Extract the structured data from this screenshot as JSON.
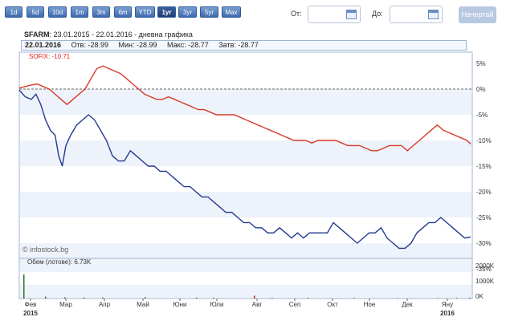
{
  "toolbar": {
    "periods": [
      "1d",
      "5d",
      "10d",
      "1m",
      "3m",
      "6m",
      "YTD",
      "1yr",
      "3yr",
      "5yr",
      "Max"
    ],
    "period_labels": [
      "1d",
      "5d",
      "10d",
      "1m",
      "3m",
      "6m",
      "YTD",
      "1yr",
      "3yr",
      "5yr",
      "Max"
    ],
    "active_period": "1yr",
    "from_label": "От:",
    "to_label": "До:",
    "draw_label": "Начертай"
  },
  "header": {
    "symbol": "SFARM",
    "subtitle": ": 23.01.2015 - 22.01.2016 - дневна графика"
  },
  "quote": {
    "date": "22.01.2016",
    "open": "Отв: -28.99",
    "min": "Мин: -28.99",
    "max": "Макс: -28.77",
    "close": "Затв: -28.77"
  },
  "chart_labels": {
    "sofix": "SOFIX: -10.71",
    "copyright": "© infostock.bg",
    "volume": "Обем (лотове): 6.73K",
    "y_ticks": [
      "5%",
      "0%",
      "-5%",
      "-10%",
      "-15%",
      "-20%",
      "-25%",
      "-30%",
      "-35%"
    ],
    "vol_ticks": [
      "2000K",
      "1000K",
      "0K"
    ],
    "x_months": [
      "Фев",
      "Мар",
      "Апр",
      "Май",
      "Юни",
      "Юли",
      "Авг",
      "Сеп",
      "Окт",
      "Ное",
      "Дек",
      "Яну"
    ],
    "x_years": [
      "2015",
      "2016"
    ]
  },
  "colors": {
    "sfarm_line": "#23398f",
    "sofix_line": "#d83a28",
    "band": "#eef2fa"
  },
  "chart_data": {
    "type": "line",
    "x_start": "23.01.2015",
    "x_end": "22.01.2016",
    "ylim": [
      -35,
      5
    ],
    "y_unit": "%",
    "series": [
      {
        "name": "SFARM",
        "points": [
          [
            0,
            -0.2
          ],
          [
            0.5,
            -1.5
          ],
          [
            1,
            -2
          ],
          [
            1.4,
            -1
          ],
          [
            1.8,
            -3
          ],
          [
            2.2,
            -6
          ],
          [
            2.6,
            -8
          ],
          [
            3,
            -9
          ],
          [
            3.3,
            -13
          ],
          [
            3.6,
            -15
          ],
          [
            3.9,
            -11
          ],
          [
            4.3,
            -9
          ],
          [
            4.8,
            -7
          ],
          [
            5.3,
            -6
          ],
          [
            5.8,
            -5
          ],
          [
            6.3,
            -6
          ],
          [
            6.8,
            -8
          ],
          [
            7.3,
            -10
          ],
          [
            7.8,
            -13
          ],
          [
            8.3,
            -14
          ],
          [
            8.8,
            -14
          ],
          [
            9.3,
            -12
          ],
          [
            9.8,
            -13
          ],
          [
            10.3,
            -14
          ],
          [
            10.8,
            -15
          ],
          [
            11.3,
            -15
          ],
          [
            11.8,
            -16
          ],
          [
            12.3,
            -16
          ],
          [
            12.8,
            -17
          ],
          [
            13.3,
            -18
          ],
          [
            13.8,
            -19
          ],
          [
            14.3,
            -19
          ],
          [
            14.8,
            -20
          ],
          [
            15.3,
            -21
          ],
          [
            15.8,
            -21
          ],
          [
            16.3,
            -22
          ],
          [
            16.8,
            -23
          ],
          [
            17.3,
            -24
          ],
          [
            17.8,
            -24
          ],
          [
            18.3,
            -25
          ],
          [
            18.8,
            -26
          ],
          [
            19.3,
            -26
          ],
          [
            19.8,
            -27
          ],
          [
            20.3,
            -27
          ],
          [
            20.8,
            -28
          ],
          [
            21.3,
            -28
          ],
          [
            21.8,
            -27
          ],
          [
            22.3,
            -28
          ],
          [
            22.8,
            -29
          ],
          [
            23.3,
            -28
          ],
          [
            23.8,
            -29
          ],
          [
            24.3,
            -28
          ],
          [
            24.8,
            -28
          ],
          [
            25.3,
            -28
          ],
          [
            25.8,
            -28
          ],
          [
            26.3,
            -26
          ],
          [
            26.8,
            -27
          ],
          [
            27.3,
            -28
          ],
          [
            27.8,
            -29
          ],
          [
            28.3,
            -30
          ],
          [
            28.8,
            -29
          ],
          [
            29.3,
            -28
          ],
          [
            29.8,
            -28
          ],
          [
            30.3,
            -27
          ],
          [
            30.8,
            -29
          ],
          [
            31.3,
            -30
          ],
          [
            31.8,
            -31
          ],
          [
            32.3,
            -31
          ],
          [
            32.8,
            -30
          ],
          [
            33.3,
            -28
          ],
          [
            33.8,
            -27
          ],
          [
            34.3,
            -26
          ],
          [
            34.8,
            -26
          ],
          [
            35.3,
            -25
          ],
          [
            35.8,
            -26
          ],
          [
            36.3,
            -27
          ],
          [
            36.8,
            -28
          ],
          [
            37.3,
            -29
          ],
          [
            37.8,
            -28.8
          ]
        ]
      },
      {
        "name": "SOFIX",
        "points": [
          [
            0,
            0.2
          ],
          [
            0.5,
            0.5
          ],
          [
            1,
            0.8
          ],
          [
            1.5,
            1
          ],
          [
            2,
            0.5
          ],
          [
            2.5,
            0
          ],
          [
            3,
            -1
          ],
          [
            3.5,
            -2
          ],
          [
            4,
            -3
          ],
          [
            4.5,
            -2
          ],
          [
            5,
            -1
          ],
          [
            5.5,
            0
          ],
          [
            6,
            2
          ],
          [
            6.5,
            4
          ],
          [
            7,
            4.5
          ],
          [
            7.5,
            4
          ],
          [
            8,
            3.5
          ],
          [
            8.5,
            3
          ],
          [
            9,
            2
          ],
          [
            9.5,
            1
          ],
          [
            10,
            0
          ],
          [
            10.5,
            -1
          ],
          [
            11,
            -1.5
          ],
          [
            11.5,
            -2
          ],
          [
            12,
            -2
          ],
          [
            12.5,
            -1.5
          ],
          [
            13,
            -2
          ],
          [
            13.5,
            -2.5
          ],
          [
            14,
            -3
          ],
          [
            14.5,
            -3.5
          ],
          [
            15,
            -4
          ],
          [
            15.5,
            -4
          ],
          [
            16,
            -4.5
          ],
          [
            16.5,
            -5
          ],
          [
            17,
            -5
          ],
          [
            17.5,
            -5
          ],
          [
            18,
            -5
          ],
          [
            18.5,
            -5.5
          ],
          [
            19,
            -6
          ],
          [
            19.5,
            -6.5
          ],
          [
            20,
            -7
          ],
          [
            20.5,
            -7.5
          ],
          [
            21,
            -8
          ],
          [
            21.5,
            -8.5
          ],
          [
            22,
            -9
          ],
          [
            22.5,
            -9.5
          ],
          [
            23,
            -10
          ],
          [
            23.5,
            -10
          ],
          [
            24,
            -10
          ],
          [
            24.5,
            -10.5
          ],
          [
            25,
            -10
          ],
          [
            25.5,
            -10
          ],
          [
            26,
            -10
          ],
          [
            26.5,
            -10
          ],
          [
            27,
            -10.5
          ],
          [
            27.5,
            -11
          ],
          [
            28,
            -11
          ],
          [
            28.5,
            -11
          ],
          [
            29,
            -11.5
          ],
          [
            29.5,
            -12
          ],
          [
            30,
            -12
          ],
          [
            30.5,
            -11.5
          ],
          [
            31,
            -11
          ],
          [
            31.5,
            -11
          ],
          [
            32,
            -11
          ],
          [
            32.5,
            -12
          ],
          [
            33,
            -11
          ],
          [
            33.5,
            -10
          ],
          [
            34,
            -9
          ],
          [
            34.5,
            -8
          ],
          [
            35,
            -7
          ],
          [
            35.5,
            -8
          ],
          [
            36,
            -8.5
          ],
          [
            36.5,
            -9
          ],
          [
            37,
            -9.5
          ],
          [
            37.5,
            -10
          ],
          [
            37.8,
            -10.7
          ]
        ]
      }
    ],
    "volume_ylim": [
      0,
      2000
    ],
    "volume_unit": "K",
    "volume_bars": [
      [
        1,
        1500
      ],
      [
        28,
        120
      ],
      [
        52,
        80
      ],
      [
        76,
        60
      ],
      [
        99,
        70
      ],
      [
        152,
        90
      ],
      [
        216,
        60
      ],
      [
        237,
        50
      ],
      [
        288,
        180
      ],
      [
        310,
        40
      ],
      [
        355,
        50
      ],
      [
        412,
        40
      ],
      [
        466,
        30
      ],
      [
        516,
        30
      ],
      [
        540,
        40
      ],
      [
        556,
        50
      ]
    ],
    "grid": true,
    "legend": "top-left"
  }
}
